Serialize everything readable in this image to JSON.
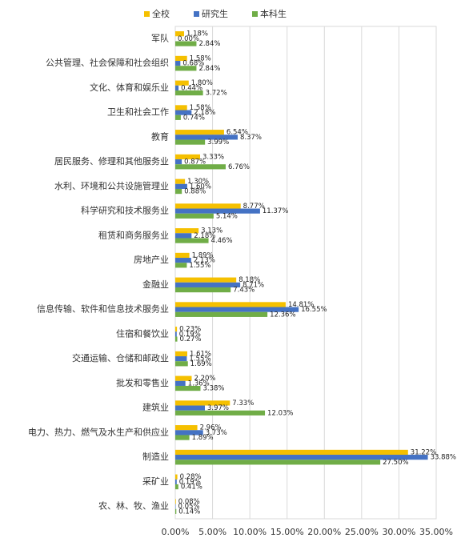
{
  "chart_data": {
    "type": "hbar",
    "categories": [
      "军队",
      "公共管理、社会保障和社会组织",
      "文化、体育和娱乐业",
      "卫生和社会工作",
      "教育",
      "居民服务、修理和其他服务业",
      "水利、环境和公共设施管理业",
      "科学研究和技术服务业",
      "租赁和商务服务业",
      "房地产业",
      "金融业",
      "信息传输、软件和信息技术服务业",
      "住宿和餐饮业",
      "交通运输、仓储和邮政业",
      "批发和零售业",
      "建筑业",
      "电力、热力、燃气及水生产和供应业",
      "制造业",
      "采矿业",
      "农、林、牧、渔业"
    ],
    "series": [
      {
        "name": "全校",
        "color": "#f5c000",
        "values": [
          1.18,
          1.58,
          1.8,
          1.58,
          6.54,
          3.33,
          1.3,
          8.77,
          3.13,
          1.89,
          8.18,
          14.81,
          0.23,
          1.61,
          2.2,
          7.33,
          2.96,
          31.22,
          0.28,
          0.08
        ],
        "value_labels": [
          "1.18%",
          "1.58%",
          "1.80%",
          "1.58%",
          "6.54%",
          "3.33%",
          "1.30%",
          "8.77%",
          "3.13%",
          "1.89%",
          "8.18%",
          "14.81%",
          "0.23%",
          "1.61%",
          "2.20%",
          "7.33%",
          "2.96%",
          "31.22%",
          "0.28%",
          "0.08%"
        ]
      },
      {
        "name": "研究生",
        "color": "#4472c4",
        "values": [
          0.0,
          0.68,
          0.44,
          2.18,
          8.37,
          0.87,
          1.6,
          11.37,
          2.18,
          2.13,
          8.71,
          16.55,
          0.19,
          1.55,
          1.36,
          3.97,
          3.73,
          33.88,
          0.19,
          0.05
        ],
        "value_labels": [
          "0.00%",
          "0.68%",
          "0.44%",
          "2.18%",
          "8.37%",
          "0.87%",
          "1.60%",
          "11.37%",
          "2.18%",
          "2.13%",
          "8.71%",
          "16.55%",
          "0.19%",
          "1.55%",
          "1.36%",
          "3.97%",
          "3.73%",
          "33.88%",
          "0.19%",
          "0.05%"
        ]
      },
      {
        "name": "本科生",
        "color": "#70ad47",
        "values": [
          2.84,
          2.84,
          3.72,
          0.74,
          3.99,
          6.76,
          0.88,
          5.14,
          4.46,
          1.55,
          7.43,
          12.36,
          0.27,
          1.69,
          3.38,
          12.03,
          1.89,
          27.5,
          0.41,
          0.14
        ],
        "value_labels": [
          "2.84%",
          "2.84%",
          "3.72%",
          "0.74%",
          "3.99%",
          "6.76%",
          "0.88%",
          "5.14%",
          "4.46%",
          "1.55%",
          "7.43%",
          "12.36%",
          "0.27%",
          "1.69%",
          "3.38%",
          "12.03%",
          "1.89%",
          "27.50%",
          "0.41%",
          "0.14%"
        ]
      }
    ],
    "xlim": [
      0,
      35
    ],
    "xticks": [
      {
        "value": 0,
        "label": "0.00%"
      },
      {
        "value": 5,
        "label": "5.00%"
      },
      {
        "value": 10,
        "label": "10.00%"
      },
      {
        "value": 15,
        "label": "15.00%"
      },
      {
        "value": 20,
        "label": "20.00%"
      },
      {
        "value": 25,
        "label": "25.00%"
      },
      {
        "value": 30,
        "label": "30.00%"
      },
      {
        "value": 35,
        "label": "35.00%"
      }
    ],
    "grid": true,
    "legend": "top"
  }
}
